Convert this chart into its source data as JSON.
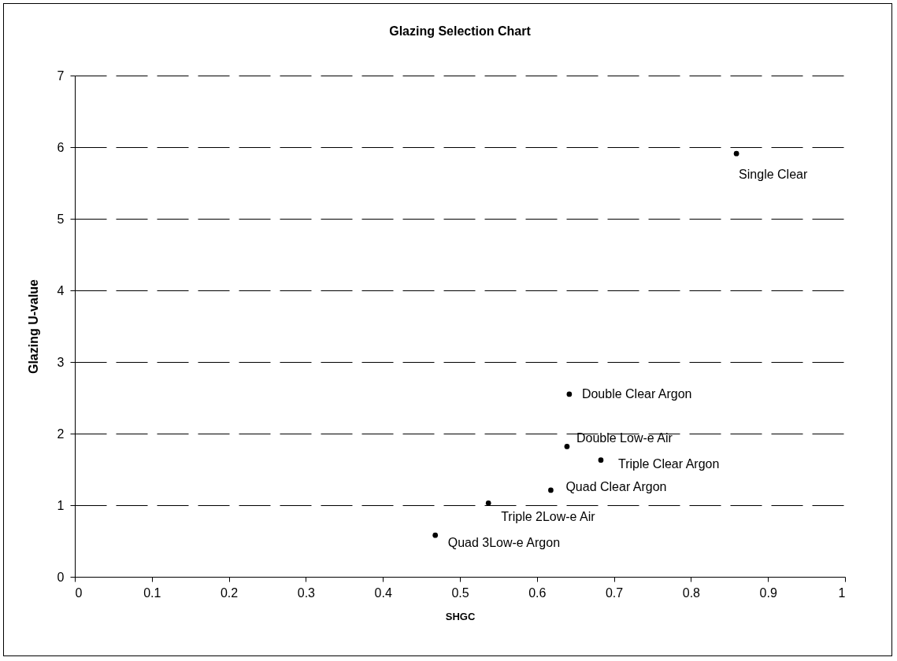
{
  "chart_data": {
    "type": "scatter",
    "title": "Glazing Selection Chart",
    "xlabel": "SHGC",
    "ylabel": "Glazing U-value",
    "x": [
      0.859,
      0.642,
      0.639,
      0.683,
      0.618,
      0.537,
      0.468
    ],
    "series": [
      {
        "color": "#000000",
        "values": [
          5.91,
          2.55,
          1.82,
          1.63,
          1.21,
          1.03,
          0.58
        ]
      }
    ],
    "annotations": [
      {
        "text": "Single Clear",
        "x": 0.859,
        "y": 5.91
      },
      {
        "text": "Double Clear Argon",
        "x": 0.642,
        "y": 2.55
      },
      {
        "text": "Double Low-e Air",
        "x": 0.639,
        "y": 1.82
      },
      {
        "text": "Triple Clear Argon",
        "x": 0.683,
        "y": 1.63
      },
      {
        "text": "Quad Clear Argon",
        "x": 0.618,
        "y": 1.21
      },
      {
        "text": "Triple 2Low-e Air",
        "x": 0.537,
        "y": 1.03
      },
      {
        "text": "Quad 3Low-e Argon",
        "x": 0.468,
        "y": 0.58
      }
    ],
    "xlim": [
      0,
      1
    ],
    "xticks": [
      0,
      {
        "value": 0.1,
        "label": "0.1"
      },
      {
        "value": 0.2,
        "label": "0.2"
      },
      {
        "value": 0.3,
        "label": "0.3"
      },
      {
        "value": 0.4,
        "label": "0.4"
      },
      {
        "value": 0.5,
        "label": "0.5"
      },
      {
        "value": 0.6,
        "label": "0.6"
      },
      {
        "value": 0.7,
        "label": "0.7"
      },
      {
        "value": 0.8,
        "label": "0.8"
      },
      {
        "value": 0.9,
        "label": "0.9"
      },
      1
    ],
    "ylim": [
      0,
      7
    ],
    "yticks": [
      0,
      1,
      2,
      3,
      4,
      5,
      6,
      7
    ],
    "grid": "y",
    "marker": "circle"
  }
}
